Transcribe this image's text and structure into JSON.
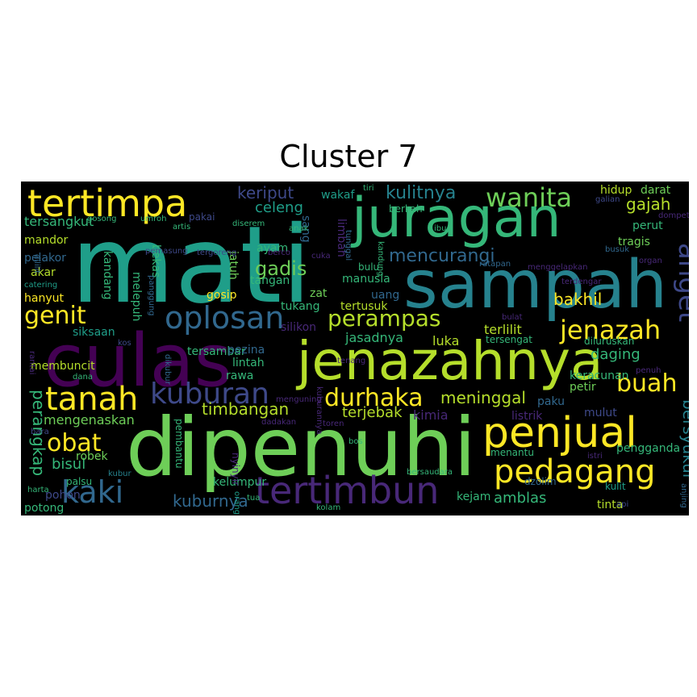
{
  "title": "Cluster 7",
  "palette": {
    "yellow": "#fde725",
    "lime": "#b5de2b",
    "green": "#6ece58",
    "teal_green": "#35b779",
    "teal": "#1f9e89",
    "blue_teal": "#26828e",
    "blue": "#31688e",
    "indigo": "#3e4989",
    "purple": "#482878",
    "dark_purple": "#440154"
  },
  "words": [
    {
      "text": "mati"
    },
    {
      "text": "juragan"
    },
    {
      "text": "sampah"
    },
    {
      "text": "dipenuhi"
    },
    {
      "text": "culas"
    },
    {
      "text": "jenazahnya"
    },
    {
      "text": "tertimpa"
    },
    {
      "text": "tertimbun"
    },
    {
      "text": "penjual"
    },
    {
      "text": "pedagang"
    },
    {
      "text": "oplosan"
    },
    {
      "text": "tanah"
    },
    {
      "text": "kaki"
    },
    {
      "text": "kuburan"
    },
    {
      "text": "wanita"
    },
    {
      "text": "durhaka"
    },
    {
      "text": "jenazah"
    },
    {
      "text": "buah"
    },
    {
      "text": "perampas"
    },
    {
      "text": "genit"
    },
    {
      "text": "obat"
    },
    {
      "text": "anget"
    },
    {
      "text": "kulitnya"
    },
    {
      "text": "mencurangi"
    },
    {
      "text": "gadis"
    },
    {
      "text": "timbangan"
    },
    {
      "text": "meninggal"
    },
    {
      "text": "keriput"
    },
    {
      "text": "bersyukur"
    },
    {
      "text": "perangkap"
    },
    {
      "text": "bakhil"
    },
    {
      "text": "gajah"
    },
    {
      "text": "celeng"
    },
    {
      "text": "kuburnya"
    },
    {
      "text": "daging"
    },
    {
      "text": "terjebak"
    },
    {
      "text": "amblas"
    },
    {
      "text": "bisul"
    },
    {
      "text": "tersangkut"
    },
    {
      "text": "siksaan"
    },
    {
      "text": "kimia"
    },
    {
      "text": "mengenaskan"
    },
    {
      "text": "jasadnya"
    },
    {
      "text": "terlilit"
    },
    {
      "text": "keracunan"
    },
    {
      "text": "wakaf"
    },
    {
      "text": "manusia"
    },
    {
      "text": "tertusuk"
    },
    {
      "text": "tersambar"
    },
    {
      "text": "pezina"
    },
    {
      "text": "luka"
    },
    {
      "text": "tukang"
    },
    {
      "text": "pengganda"
    },
    {
      "text": "pohon"
    },
    {
      "text": "kelumpur"
    },
    {
      "text": "kejam"
    },
    {
      "text": "tinta"
    },
    {
      "text": "darat"
    },
    {
      "text": "hidup"
    },
    {
      "text": "tragis"
    },
    {
      "text": "perut"
    },
    {
      "text": "lintah"
    },
    {
      "text": "rawa"
    },
    {
      "text": "mandor"
    },
    {
      "text": "akar"
    },
    {
      "text": "hanyut"
    },
    {
      "text": "pelakor"
    },
    {
      "text": "tangan"
    },
    {
      "text": "ayam"
    },
    {
      "text": "zat"
    },
    {
      "text": "uang"
    },
    {
      "text": "gosip"
    },
    {
      "text": "silikon"
    },
    {
      "text": "listrik"
    },
    {
      "text": "paku"
    },
    {
      "text": "petir"
    },
    {
      "text": "mulut"
    },
    {
      "text": "membuncit"
    },
    {
      "text": "potong"
    },
    {
      "text": "robek"
    },
    {
      "text": "palsu"
    },
    {
      "text": "pakai"
    },
    {
      "text": "bekas"
    },
    {
      "text": "kandang"
    },
    {
      "text": "melepuh"
    },
    {
      "text": "jatuh"
    },
    {
      "text": "sang"
    },
    {
      "text": "limbah"
    },
    {
      "text": "bulu"
    },
    {
      "text": "berkah"
    },
    {
      "text": "diluruskan"
    },
    {
      "text": "tersengat"
    },
    {
      "text": "menantu"
    },
    {
      "text": "dzolim"
    },
    {
      "text": "kulit"
    },
    {
      "text": "bersaudara"
    },
    {
      "text": "pembantu"
    },
    {
      "text": "nyinyir"
    },
    {
      "text": "menguning"
    },
    {
      "text": "kuburannya"
    },
    {
      "text": "dikubur"
    },
    {
      "text": "kubur"
    },
    {
      "text": "toren"
    },
    {
      "text": "dadakan"
    },
    {
      "text": "istri"
    },
    {
      "text": "penuh"
    },
    {
      "text": "bos"
    },
    {
      "text": "tua"
    },
    {
      "text": "orang"
    },
    {
      "text": "kolam"
    },
    {
      "text": "api"
    },
    {
      "text": "anjing"
    },
    {
      "text": "organ"
    },
    {
      "text": "busuk"
    },
    {
      "text": "dompet"
    },
    {
      "text": "galian"
    },
    {
      "text": "gosong"
    },
    {
      "text": "umroh"
    },
    {
      "text": "artis"
    },
    {
      "text": "diserem"
    },
    {
      "text": "anak"
    },
    {
      "text": "tiri"
    },
    {
      "text": "ibu"
    },
    {
      "text": "berco"
    },
    {
      "text": "tunggal"
    },
    {
      "text": "kandung"
    },
    {
      "text": "ratapan"
    },
    {
      "text": "menggelapkan"
    },
    {
      "text": "terdengar"
    },
    {
      "text": "tergoreng"
    },
    {
      "text": "pemasung"
    },
    {
      "text": "catering"
    },
    {
      "text": "panggung"
    },
    {
      "text": "kos"
    },
    {
      "text": "dana"
    },
    {
      "text": "rantai"
    },
    {
      "text": "dililit"
    },
    {
      "text": "harta"
    },
    {
      "text": "bara"
    },
    {
      "text": "tenang"
    },
    {
      "text": "bulat"
    },
    {
      "text": "cuka"
    }
  ]
}
